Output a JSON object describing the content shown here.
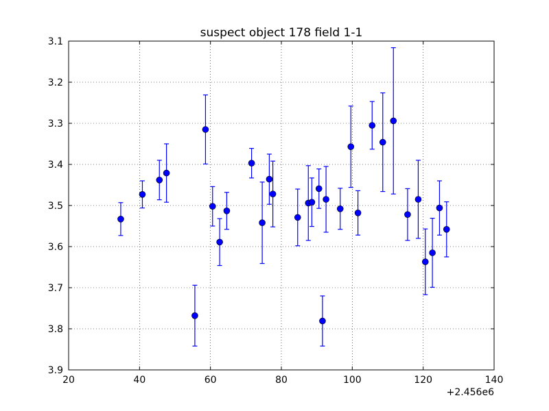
{
  "chart_data": {
    "type": "scatter",
    "title": "suspect object 178 field 1-1",
    "xlabel": "",
    "ylabel": "",
    "x_offset_label": "+2.456e6",
    "xlim": [
      20,
      140
    ],
    "ylim": [
      3.9,
      3.1
    ],
    "y_inverted": true,
    "grid": true,
    "x_ticks": [
      "20",
      "40",
      "60",
      "80",
      "100",
      "120",
      "140"
    ],
    "x_tick_values": [
      20,
      40,
      60,
      80,
      100,
      120,
      140
    ],
    "y_ticks": [
      "3.1",
      "3.2",
      "3.3",
      "3.4",
      "3.5",
      "3.6",
      "3.7",
      "3.8",
      "3.9"
    ],
    "y_tick_values": [
      3.1,
      3.2,
      3.3,
      3.4,
      3.5,
      3.6,
      3.7,
      3.8,
      3.9
    ],
    "marker_color": "#0000ff",
    "series": [
      {
        "points": [
          {
            "x": 34.7,
            "y": 3.533,
            "err": 0.04
          },
          {
            "x": 40.8,
            "y": 3.473,
            "err": 0.033
          },
          {
            "x": 45.6,
            "y": 3.438,
            "err": 0.048
          },
          {
            "x": 47.6,
            "y": 3.421,
            "err": 0.071
          },
          {
            "x": 55.6,
            "y": 3.768,
            "err": 0.074
          },
          {
            "x": 58.6,
            "y": 3.315,
            "err": 0.084
          },
          {
            "x": 60.6,
            "y": 3.502,
            "err": 0.048
          },
          {
            "x": 62.6,
            "y": 3.589,
            "err": 0.057
          },
          {
            "x": 64.6,
            "y": 3.513,
            "err": 0.045
          },
          {
            "x": 71.6,
            "y": 3.397,
            "err": 0.036
          },
          {
            "x": 74.6,
            "y": 3.542,
            "err": 0.099
          },
          {
            "x": 76.6,
            "y": 3.436,
            "err": 0.061
          },
          {
            "x": 77.6,
            "y": 3.472,
            "err": 0.08
          },
          {
            "x": 84.6,
            "y": 3.529,
            "err": 0.069
          },
          {
            "x": 87.6,
            "y": 3.494,
            "err": 0.091
          },
          {
            "x": 88.6,
            "y": 3.492,
            "err": 0.059
          },
          {
            "x": 90.6,
            "y": 3.459,
            "err": 0.048
          },
          {
            "x": 91.6,
            "y": 3.781,
            "err": 0.061
          },
          {
            "x": 92.6,
            "y": 3.485,
            "err": 0.08
          },
          {
            "x": 96.6,
            "y": 3.508,
            "err": 0.05
          },
          {
            "x": 99.6,
            "y": 3.357,
            "err": 0.099
          },
          {
            "x": 101.6,
            "y": 3.518,
            "err": 0.054
          },
          {
            "x": 105.6,
            "y": 3.305,
            "err": 0.058
          },
          {
            "x": 108.6,
            "y": 3.346,
            "err": 0.12
          },
          {
            "x": 111.6,
            "y": 3.294,
            "err": 0.178
          },
          {
            "x": 115.6,
            "y": 3.522,
            "err": 0.063
          },
          {
            "x": 118.6,
            "y": 3.485,
            "err": 0.095
          },
          {
            "x": 120.6,
            "y": 3.637,
            "err": 0.08
          },
          {
            "x": 122.6,
            "y": 3.615,
            "err": 0.084
          },
          {
            "x": 124.6,
            "y": 3.506,
            "err": 0.066
          },
          {
            "x": 126.6,
            "y": 3.558,
            "err": 0.067
          }
        ]
      }
    ]
  }
}
